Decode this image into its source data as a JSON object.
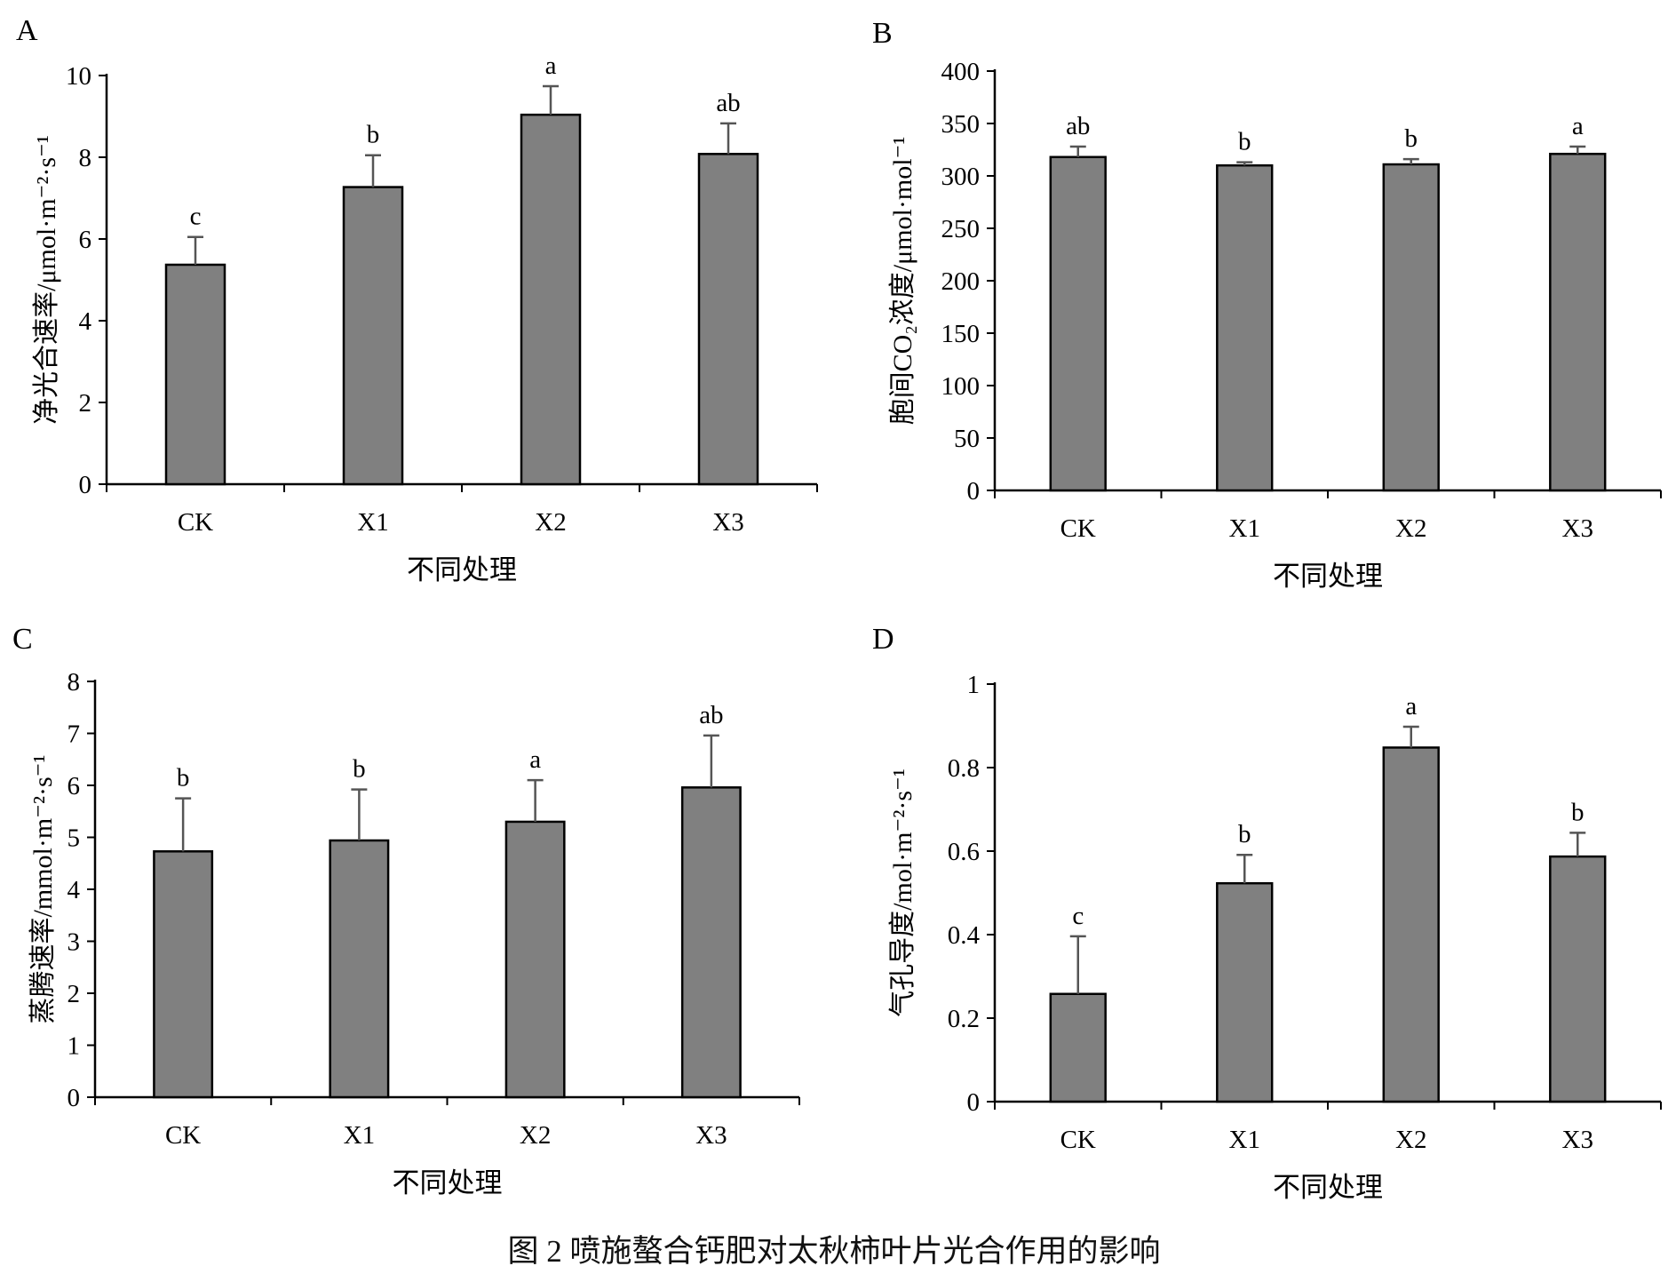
{
  "caption": "图 2   喷施螯合钙肥对太秋柿叶片光合作用的影响",
  "colors": {
    "bar": "#808080",
    "axis": "#000000",
    "error": "#555555"
  },
  "chart_data": [
    {
      "panel": "A",
      "type": "bar",
      "categories": [
        "CK",
        "X1",
        "X2",
        "X3"
      ],
      "values": [
        5.37,
        7.27,
        9.04,
        8.08
      ],
      "errors": [
        0.68,
        0.78,
        0.7,
        0.75
      ],
      "significance": [
        "c",
        "b",
        "a",
        "ab"
      ],
      "ylabel": "净光合速率/μmol·m⁻²·s⁻¹",
      "xlabel": "不同处理",
      "ylim": [
        0,
        10
      ],
      "yticks": [
        "0",
        "2",
        "4",
        "6",
        "8",
        "10"
      ]
    },
    {
      "panel": "B",
      "type": "bar",
      "categories": [
        "CK",
        "X1",
        "X2",
        "X3"
      ],
      "values": [
        318,
        310,
        311,
        321
      ],
      "errors": [
        10,
        3,
        5,
        7
      ],
      "significance": [
        "ab",
        "b",
        "b",
        "a"
      ],
      "ylabel": "胞间CO₂浓度/μmol·mol⁻¹",
      "xlabel": "不同处理",
      "ylim": [
        0,
        400
      ],
      "yticks": [
        "0",
        "50",
        "100",
        "150",
        "200",
        "250",
        "300",
        "350",
        "400"
      ]
    },
    {
      "panel": "C",
      "type": "bar",
      "categories": [
        "CK",
        "X1",
        "X2",
        "X3"
      ],
      "values": [
        4.73,
        4.94,
        5.3,
        5.96
      ],
      "errors": [
        1.02,
        0.98,
        0.8,
        1.0
      ],
      "significance": [
        "b",
        "b",
        "a",
        "ab"
      ],
      "ylabel": "蒸腾速率/mmol·m⁻²·s⁻¹",
      "xlabel": "不同处理",
      "ylim": [
        0,
        8
      ],
      "yticks": [
        "0",
        "1",
        "2",
        "3",
        "4",
        "5",
        "6",
        "7",
        "8"
      ]
    },
    {
      "panel": "D",
      "type": "bar",
      "categories": [
        "CK",
        "X1",
        "X2",
        "X3"
      ],
      "values": [
        0.258,
        0.523,
        0.848,
        0.587
      ],
      "errors": [
        0.138,
        0.068,
        0.05,
        0.057
      ],
      "significance": [
        "c",
        "b",
        "a",
        "b"
      ],
      "ylabel": "气孔导度/mol·m⁻²·s⁻¹",
      "xlabel": "不同处理",
      "ylim": [
        0,
        1
      ],
      "yticks": [
        "0",
        "0.2",
        "0.4",
        "0.6",
        "0.8",
        "1"
      ]
    }
  ]
}
